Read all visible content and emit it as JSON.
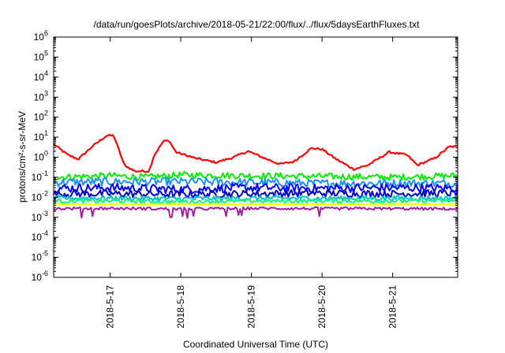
{
  "chart_data": {
    "type": "line",
    "title": "/data/run/goesPlots/archive/2018-05-21/22:00/flux/../flux/5daysEarthFluxes.txt",
    "xlabel": "Coordinated Universal Time (UTC)",
    "ylabel": "protons/cm²-s-sr-MeV",
    "y_scale": "log",
    "ylim_exp": [
      -6,
      6
    ],
    "xlim_days": [
      16.2,
      21.92
    ],
    "x_ticks": [
      {
        "value": 17,
        "label": "2018-5-17"
      },
      {
        "value": 18,
        "label": "2018-5-18"
      },
      {
        "value": 19,
        "label": "2018-5-19"
      },
      {
        "value": 20,
        "label": "2018-5-20"
      },
      {
        "value": 21,
        "label": "2018-5-21"
      }
    ],
    "grid": false,
    "series": [
      {
        "color": "#ff0000",
        "noise": 0.05,
        "lw": 2.2,
        "points": [
          [
            16.2,
            4.5
          ],
          [
            16.4,
            1.3
          ],
          [
            16.55,
            0.8
          ],
          [
            16.75,
            3.5
          ],
          [
            16.95,
            12
          ],
          [
            17.05,
            12
          ],
          [
            17.1,
            4
          ],
          [
            17.2,
            0.4
          ],
          [
            17.35,
            0.2
          ],
          [
            17.55,
            0.2
          ],
          [
            17.62,
            1.2
          ],
          [
            17.75,
            6
          ],
          [
            17.83,
            7
          ],
          [
            17.93,
            1.8
          ],
          [
            18.2,
            0.9
          ],
          [
            18.5,
            0.55
          ],
          [
            18.75,
            1.0
          ],
          [
            18.95,
            2.0
          ],
          [
            19.15,
            1.0
          ],
          [
            19.4,
            0.45
          ],
          [
            19.6,
            0.6
          ],
          [
            19.85,
            2.8
          ],
          [
            20.0,
            2.5
          ],
          [
            20.2,
            0.8
          ],
          [
            20.45,
            0.25
          ],
          [
            20.65,
            0.4
          ],
          [
            20.95,
            1.8
          ],
          [
            21.2,
            1.3
          ],
          [
            21.35,
            0.4
          ],
          [
            21.6,
            0.9
          ],
          [
            21.8,
            3.3
          ],
          [
            21.92,
            3.5
          ]
        ]
      },
      {
        "color": "#00ee00",
        "noise": 0.16,
        "lw": 2,
        "points": [
          [
            16.2,
            0.1
          ],
          [
            17.0,
            0.12
          ],
          [
            17.5,
            0.1
          ],
          [
            18.0,
            0.13
          ],
          [
            19.0,
            0.12
          ],
          [
            20.0,
            0.11
          ],
          [
            21.0,
            0.1
          ],
          [
            21.92,
            0.12
          ]
        ]
      },
      {
        "color": "#1e90ff",
        "noise": 0.2,
        "lw": 2,
        "points": [
          [
            16.2,
            0.055
          ],
          [
            17.0,
            0.06
          ],
          [
            18.0,
            0.06
          ],
          [
            19.0,
            0.055
          ],
          [
            20.0,
            0.05
          ],
          [
            21.0,
            0.05
          ],
          [
            21.92,
            0.05
          ]
        ]
      },
      {
        "color": "#0000ff",
        "noise": 0.22,
        "lw": 2,
        "points": [
          [
            16.2,
            0.028
          ],
          [
            17.0,
            0.03
          ],
          [
            18.0,
            0.025
          ],
          [
            19.0,
            0.03
          ],
          [
            20.0,
            0.028
          ],
          [
            21.0,
            0.03
          ],
          [
            21.92,
            0.028
          ]
        ]
      },
      {
        "color": "#0000cd",
        "noise": 0.18,
        "lw": 2,
        "points": [
          [
            16.2,
            0.015
          ],
          [
            17.0,
            0.015
          ],
          [
            18.0,
            0.014
          ],
          [
            19.0,
            0.015
          ],
          [
            20.0,
            0.016
          ],
          [
            21.0,
            0.015
          ],
          [
            21.92,
            0.016
          ]
        ]
      },
      {
        "color": "#00bfbf",
        "noise": 0.12,
        "lw": 2,
        "points": [
          [
            16.2,
            0.009
          ],
          [
            17.0,
            0.009
          ],
          [
            18.0,
            0.0085
          ],
          [
            19.0,
            0.009
          ],
          [
            20.0,
            0.009
          ],
          [
            21.0,
            0.009
          ],
          [
            21.92,
            0.009
          ]
        ]
      },
      {
        "color": "#00ff7f",
        "noise": 0.1,
        "lw": 2,
        "points": [
          [
            16.2,
            0.0065
          ],
          [
            17.0,
            0.0065
          ],
          [
            18.0,
            0.006
          ],
          [
            19.0,
            0.0065
          ],
          [
            20.0,
            0.0065
          ],
          [
            21.0,
            0.0065
          ],
          [
            21.92,
            0.0065
          ]
        ]
      },
      {
        "color": "#ffff00",
        "noise": 0.03,
        "lw": 2.2,
        "points": [
          [
            16.2,
            0.0045
          ],
          [
            17.0,
            0.0045
          ],
          [
            18.0,
            0.0045
          ],
          [
            19.0,
            0.0045
          ],
          [
            20.0,
            0.0045
          ],
          [
            21.0,
            0.0045
          ],
          [
            21.92,
            0.0045
          ]
        ]
      },
      {
        "color": "#a020a0",
        "noise": 0.07,
        "lw": 2,
        "spikes": true,
        "points": [
          [
            16.2,
            0.0027
          ],
          [
            17.0,
            0.0028
          ],
          [
            18.0,
            0.0026
          ],
          [
            19.0,
            0.0028
          ],
          [
            20.0,
            0.0027
          ],
          [
            21.0,
            0.0027
          ],
          [
            21.92,
            0.0026
          ]
        ]
      }
    ]
  }
}
